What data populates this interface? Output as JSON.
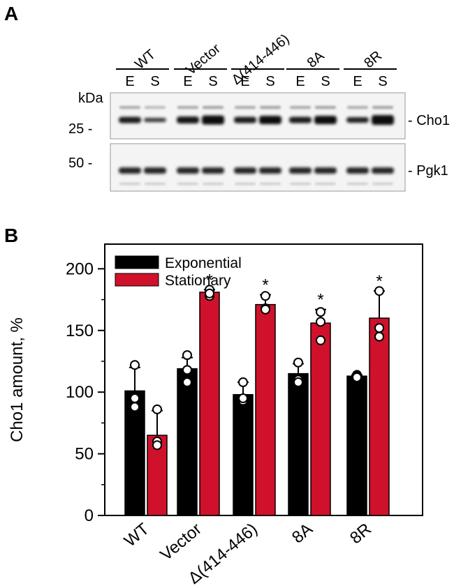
{
  "panel_a": {
    "label": "A",
    "kda_label": "kDa",
    "marker_25": "25 -",
    "marker_50": "50 -",
    "groups": [
      "WT",
      "Vector",
      "Δ(414-446)",
      "8A",
      "8R"
    ],
    "lane_e": "E",
    "lane_s": "S",
    "band_labels": [
      "- Cho1",
      "- Pgk1"
    ]
  },
  "panel_b": {
    "label": "B"
  },
  "chart_data": {
    "type": "bar",
    "categories": [
      "WT",
      "Vector",
      "Δ(414-446)",
      "8A",
      "8R"
    ],
    "ylabel": "Cho1 amount, %",
    "ylim": [
      0,
      220
    ],
    "yticks": [
      0,
      50,
      100,
      150,
      200
    ],
    "legend_position": "top-left",
    "series": [
      {
        "name": "Exponential",
        "color": "#000000",
        "values": [
          101,
          119,
          98,
          115,
          113
        ],
        "errors": [
          19,
          9,
          10,
          8,
          1
        ],
        "points": [
          [
            122,
            95,
            88
          ],
          [
            130,
            118,
            108
          ],
          [
            108,
            93,
            95
          ],
          [
            124,
            110,
            108
          ],
          [
            114,
            113,
            112
          ]
        ]
      },
      {
        "name": "Stationary",
        "color": "#d0112b",
        "values": [
          65,
          181,
          171,
          156,
          160
        ],
        "errors": [
          20,
          2,
          8,
          11,
          22
        ],
        "points": [
          [
            86,
            60,
            57
          ],
          [
            183,
            178,
            180
          ],
          [
            178,
            168,
            167
          ],
          [
            165,
            157,
            142
          ],
          [
            182,
            152,
            145
          ]
        ],
        "significance": [
          "",
          "*",
          "*",
          "*",
          "*"
        ]
      }
    ]
  }
}
